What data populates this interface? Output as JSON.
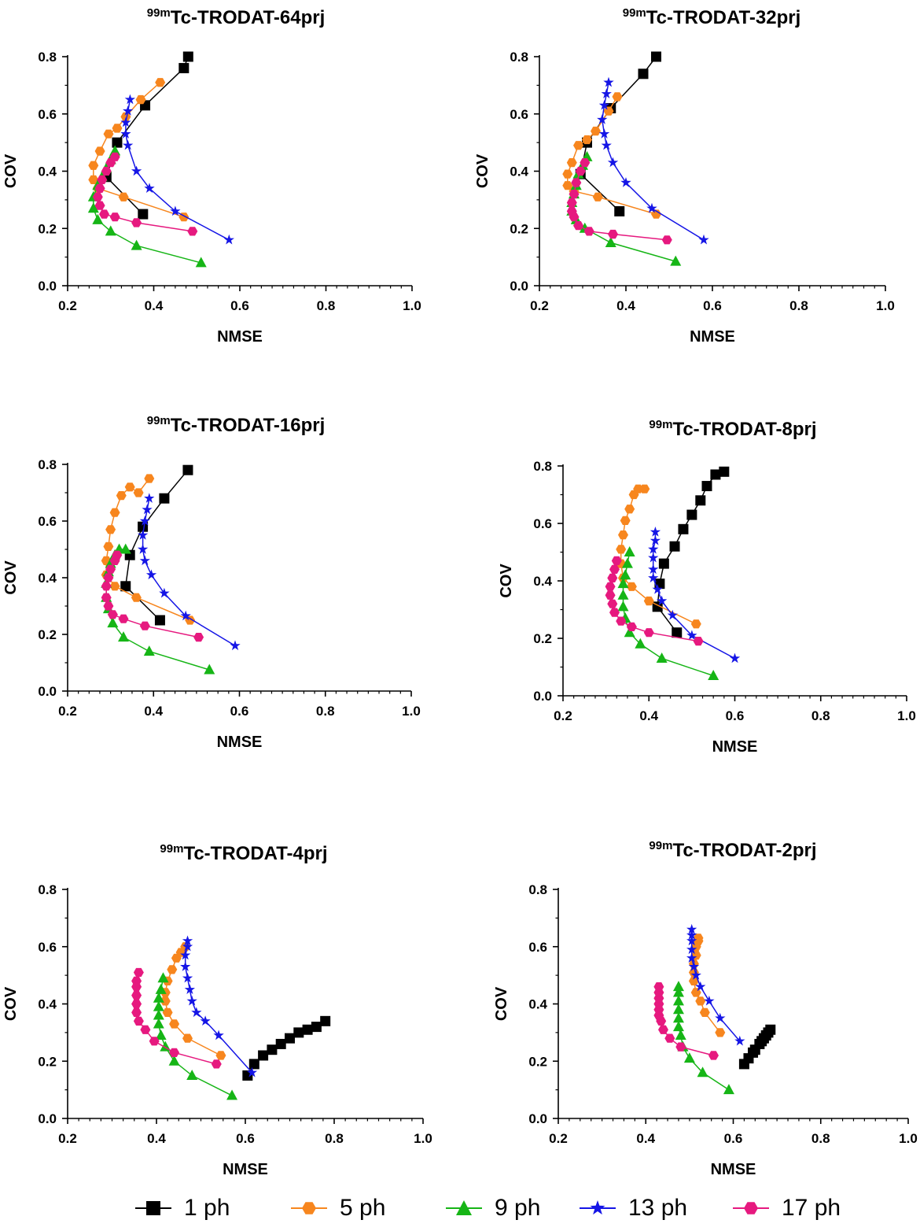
{
  "series_styles": [
    {
      "name": "1 ph",
      "color": "#000000",
      "marker": "square"
    },
    {
      "name": "5 ph",
      "color": "#F7861E",
      "marker": "hexagon"
    },
    {
      "name": "9 ph",
      "color": "#16B516",
      "marker": "triangle"
    },
    {
      "name": "13 ph",
      "color": "#1515E6",
      "marker": "star"
    },
    {
      "name": "17 ph",
      "color": "#E6197F",
      "marker": "hexagon"
    }
  ],
  "legend": {
    "items": [
      {
        "label": "1 ph"
      },
      {
        "label": "5 ph"
      },
      {
        "label": "9 ph"
      },
      {
        "label": "13 ph"
      },
      {
        "label": "17 ph"
      }
    ]
  },
  "chart_data": [
    {
      "type": "line",
      "title_sup": "99m",
      "title_main": "Tc-TRODAT-64prj",
      "xlabel": "NMSE",
      "ylabel": "COV",
      "xlim": [
        0.2,
        1.0
      ],
      "ylim": [
        0.0,
        0.8
      ],
      "xticks": [
        "0.2",
        "0.4",
        "0.6",
        "0.8",
        "1.0"
      ],
      "yticks": [
        "0.0",
        "0.2",
        "0.4",
        "0.6",
        "0.8"
      ],
      "series": [
        {
          "name": "1 ph",
          "x": [
            0.375,
            0.29,
            0.315,
            0.38,
            0.47,
            0.48
          ],
          "y": [
            0.25,
            0.38,
            0.5,
            0.63,
            0.76,
            0.8
          ]
        },
        {
          "name": "5 ph",
          "x": [
            0.47,
            0.33,
            0.27,
            0.26,
            0.26,
            0.275,
            0.295,
            0.315,
            0.335,
            0.37,
            0.415
          ],
          "y": [
            0.24,
            0.31,
            0.34,
            0.37,
            0.42,
            0.47,
            0.53,
            0.55,
            0.59,
            0.65,
            0.71
          ]
        },
        {
          "name": "9 ph",
          "x": [
            0.51,
            0.36,
            0.3,
            0.27,
            0.26,
            0.26,
            0.27,
            0.28,
            0.29,
            0.3,
            0.31
          ],
          "y": [
            0.08,
            0.14,
            0.19,
            0.23,
            0.27,
            0.31,
            0.35,
            0.38,
            0.41,
            0.44,
            0.47
          ]
        },
        {
          "name": "13 ph",
          "x": [
            0.575,
            0.45,
            0.39,
            0.36,
            0.34,
            0.335,
            0.335,
            0.34,
            0.345
          ],
          "y": [
            0.16,
            0.26,
            0.34,
            0.4,
            0.49,
            0.53,
            0.57,
            0.61,
            0.65
          ]
        },
        {
          "name": "17 ph",
          "x": [
            0.49,
            0.36,
            0.31,
            0.285,
            0.275,
            0.27,
            0.275,
            0.28,
            0.29,
            0.3,
            0.31
          ],
          "y": [
            0.19,
            0.22,
            0.24,
            0.25,
            0.28,
            0.31,
            0.34,
            0.37,
            0.4,
            0.43,
            0.45
          ]
        }
      ]
    },
    {
      "type": "line",
      "title_sup": "99m",
      "title_main": "Tc-TRODAT-32prj",
      "xlabel": "NMSE",
      "ylabel": "COV",
      "xlim": [
        0.2,
        1.0
      ],
      "ylim": [
        0.0,
        0.8
      ],
      "xticks": [
        "0.2",
        "0.4",
        "0.6",
        "0.8",
        "1.0"
      ],
      "yticks": [
        "0.0",
        "0.2",
        "0.4",
        "0.6",
        "0.8"
      ],
      "series": [
        {
          "name": "1 ph",
          "x": [
            0.385,
            0.295,
            0.31,
            0.365,
            0.44,
            0.47
          ],
          "y": [
            0.26,
            0.39,
            0.5,
            0.62,
            0.74,
            0.8
          ]
        },
        {
          "name": "5 ph",
          "x": [
            0.47,
            0.335,
            0.28,
            0.265,
            0.265,
            0.275,
            0.29,
            0.31,
            0.33,
            0.36,
            0.38
          ],
          "y": [
            0.25,
            0.31,
            0.33,
            0.35,
            0.39,
            0.43,
            0.49,
            0.51,
            0.54,
            0.61,
            0.66
          ]
        },
        {
          "name": "9 ph",
          "x": [
            0.515,
            0.365,
            0.305,
            0.285,
            0.275,
            0.275,
            0.28,
            0.285,
            0.29,
            0.3,
            0.31
          ],
          "y": [
            0.085,
            0.15,
            0.2,
            0.23,
            0.26,
            0.29,
            0.32,
            0.35,
            0.39,
            0.42,
            0.45
          ]
        },
        {
          "name": "13 ph",
          "x": [
            0.58,
            0.46,
            0.4,
            0.37,
            0.355,
            0.35,
            0.345,
            0.35,
            0.355,
            0.36
          ],
          "y": [
            0.16,
            0.27,
            0.36,
            0.43,
            0.49,
            0.53,
            0.58,
            0.63,
            0.67,
            0.71
          ]
        },
        {
          "name": "17 ph",
          "x": [
            0.495,
            0.37,
            0.315,
            0.29,
            0.28,
            0.275,
            0.275,
            0.28,
            0.285,
            0.295,
            0.305
          ],
          "y": [
            0.16,
            0.18,
            0.19,
            0.21,
            0.24,
            0.26,
            0.29,
            0.32,
            0.36,
            0.4,
            0.43
          ]
        }
      ]
    },
    {
      "type": "line",
      "title_sup": "99m",
      "title_main": "Tc-TRODAT-16prj",
      "xlabel": "NMSE",
      "ylabel": "COV",
      "xlim": [
        0.2,
        1.0
      ],
      "ylim": [
        0.0,
        0.8
      ],
      "xticks": [
        "0.2",
        "0.4",
        "0.6",
        "0.8",
        "1.0"
      ],
      "yticks": [
        "0.0",
        "0.2",
        "0.4",
        "0.6",
        "0.8"
      ],
      "series": [
        {
          "name": "1 ph",
          "x": [
            0.415,
            0.335,
            0.345,
            0.375,
            0.425,
            0.48
          ],
          "y": [
            0.25,
            0.37,
            0.48,
            0.58,
            0.68,
            0.78
          ]
        },
        {
          "name": "5 ph",
          "x": [
            0.485,
            0.36,
            0.31,
            0.29,
            0.29,
            0.295,
            0.3,
            0.31,
            0.325,
            0.345,
            0.365,
            0.39
          ],
          "y": [
            0.25,
            0.33,
            0.37,
            0.41,
            0.46,
            0.51,
            0.57,
            0.63,
            0.69,
            0.72,
            0.7,
            0.75
          ]
        },
        {
          "name": "9 ph",
          "x": [
            0.53,
            0.39,
            0.33,
            0.305,
            0.295,
            0.29,
            0.29,
            0.295,
            0.3,
            0.31,
            0.32,
            0.335
          ],
          "y": [
            0.075,
            0.14,
            0.19,
            0.24,
            0.29,
            0.33,
            0.38,
            0.42,
            0.45,
            0.48,
            0.5,
            0.5
          ]
        },
        {
          "name": "13 ph",
          "x": [
            0.59,
            0.475,
            0.425,
            0.395,
            0.38,
            0.375,
            0.375,
            0.38,
            0.385,
            0.39
          ],
          "y": [
            0.16,
            0.265,
            0.345,
            0.41,
            0.46,
            0.5,
            0.55,
            0.6,
            0.64,
            0.68
          ]
        },
        {
          "name": "17 ph",
          "x": [
            0.505,
            0.38,
            0.33,
            0.305,
            0.295,
            0.29,
            0.29,
            0.295,
            0.3,
            0.31,
            0.315
          ],
          "y": [
            0.19,
            0.23,
            0.255,
            0.27,
            0.3,
            0.33,
            0.37,
            0.4,
            0.43,
            0.46,
            0.48
          ]
        }
      ]
    },
    {
      "type": "line",
      "title_sup": "99m",
      "title_main": "Tc-TRODAT-8prj",
      "xlabel": "NMSE",
      "ylabel": "COV",
      "xlim": [
        0.2,
        1.0
      ],
      "ylim": [
        0.0,
        0.8
      ],
      "xticks": [
        "0.2",
        "0.4",
        "0.6",
        "0.8",
        "1.0"
      ],
      "yticks": [
        "0.0",
        "0.2",
        "0.4",
        "0.6",
        "0.8"
      ],
      "series": [
        {
          "name": "1 ph",
          "x": [
            0.465,
            0.42,
            0.425,
            0.435,
            0.46,
            0.48,
            0.5,
            0.52,
            0.535,
            0.555,
            0.575
          ],
          "y": [
            0.22,
            0.31,
            0.39,
            0.46,
            0.52,
            0.58,
            0.63,
            0.68,
            0.73,
            0.77,
            0.78
          ]
        },
        {
          "name": "5 ph",
          "x": [
            0.51,
            0.4,
            0.36,
            0.34,
            0.335,
            0.335,
            0.34,
            0.345,
            0.355,
            0.365,
            0.375,
            0.39
          ],
          "y": [
            0.25,
            0.33,
            0.38,
            0.41,
            0.46,
            0.51,
            0.56,
            0.61,
            0.65,
            0.7,
            0.72,
            0.72
          ]
        },
        {
          "name": "9 ph",
          "x": [
            0.55,
            0.43,
            0.38,
            0.355,
            0.345,
            0.34,
            0.34,
            0.34,
            0.345,
            0.35,
            0.355
          ],
          "y": [
            0.07,
            0.13,
            0.18,
            0.22,
            0.27,
            0.31,
            0.35,
            0.39,
            0.42,
            0.46,
            0.5
          ]
        },
        {
          "name": "13 ph",
          "x": [
            0.6,
            0.5,
            0.455,
            0.43,
            0.42,
            0.41,
            0.41,
            0.41,
            0.41,
            0.415,
            0.415
          ],
          "y": [
            0.13,
            0.21,
            0.28,
            0.33,
            0.37,
            0.41,
            0.44,
            0.48,
            0.51,
            0.54,
            0.57
          ]
        },
        {
          "name": "17 ph",
          "x": [
            0.515,
            0.4,
            0.36,
            0.335,
            0.32,
            0.315,
            0.31,
            0.31,
            0.315,
            0.32,
            0.325
          ],
          "y": [
            0.19,
            0.22,
            0.24,
            0.26,
            0.29,
            0.32,
            0.35,
            0.38,
            0.41,
            0.44,
            0.47
          ]
        }
      ]
    },
    {
      "type": "line",
      "title_sup": "99m",
      "title_main": "Tc-TRODAT-4prj",
      "xlabel": "NMSE",
      "ylabel": "COV",
      "xlim": [
        0.2,
        1.0
      ],
      "ylim": [
        0.0,
        0.8
      ],
      "xticks": [
        "0.2",
        "0.4",
        "0.6",
        "0.8",
        "1.0"
      ],
      "yticks": [
        "0.0",
        "0.2",
        "0.4",
        "0.6",
        "0.8"
      ],
      "series": [
        {
          "name": "1 ph",
          "x": [
            0.605,
            0.62,
            0.64,
            0.66,
            0.68,
            0.7,
            0.72,
            0.74,
            0.76,
            0.78
          ],
          "y": [
            0.15,
            0.19,
            0.22,
            0.24,
            0.26,
            0.28,
            0.3,
            0.31,
            0.32,
            0.34
          ]
        },
        {
          "name": "5 ph",
          "x": [
            0.545,
            0.47,
            0.44,
            0.425,
            0.42,
            0.42,
            0.425,
            0.435,
            0.445,
            0.455,
            0.465
          ],
          "y": [
            0.22,
            0.28,
            0.33,
            0.37,
            0.41,
            0.44,
            0.48,
            0.52,
            0.56,
            0.58,
            0.6
          ]
        },
        {
          "name": "9 ph",
          "x": [
            0.57,
            0.48,
            0.44,
            0.42,
            0.41,
            0.405,
            0.405,
            0.405,
            0.405,
            0.41,
            0.415
          ],
          "y": [
            0.08,
            0.15,
            0.2,
            0.25,
            0.29,
            0.33,
            0.36,
            0.39,
            0.42,
            0.45,
            0.49
          ]
        },
        {
          "name": "13 ph",
          "x": [
            0.615,
            0.54,
            0.51,
            0.49,
            0.48,
            0.475,
            0.47,
            0.465,
            0.465,
            0.47,
            0.47
          ],
          "y": [
            0.16,
            0.29,
            0.34,
            0.37,
            0.41,
            0.45,
            0.49,
            0.53,
            0.57,
            0.6,
            0.62
          ]
        },
        {
          "name": "17 ph",
          "x": [
            0.535,
            0.44,
            0.395,
            0.375,
            0.36,
            0.355,
            0.355,
            0.355,
            0.355,
            0.355,
            0.36
          ],
          "y": [
            0.19,
            0.23,
            0.27,
            0.31,
            0.34,
            0.37,
            0.4,
            0.43,
            0.46,
            0.48,
            0.51
          ]
        }
      ]
    },
    {
      "type": "line",
      "title_sup": "99m",
      "title_main": "Tc-TRODAT-2prj",
      "xlabel": "NMSE",
      "ylabel": "COV",
      "xlim": [
        0.2,
        1.0
      ],
      "ylim": [
        0.0,
        0.8
      ],
      "xticks": [
        "0.2",
        "0.4",
        "0.6",
        "0.8",
        "1.0"
      ],
      "yticks": [
        "0.0",
        "0.2",
        "0.4",
        "0.6",
        "0.8"
      ],
      "series": [
        {
          "name": "1 ph",
          "x": [
            0.625,
            0.635,
            0.645,
            0.65,
            0.66,
            0.665,
            0.67,
            0.675,
            0.68,
            0.685
          ],
          "y": [
            0.19,
            0.21,
            0.23,
            0.24,
            0.26,
            0.27,
            0.28,
            0.29,
            0.3,
            0.31
          ]
        },
        {
          "name": "5 ph",
          "x": [
            0.57,
            0.535,
            0.525,
            0.515,
            0.51,
            0.51,
            0.51,
            0.515,
            0.515,
            0.52,
            0.52
          ],
          "y": [
            0.3,
            0.37,
            0.41,
            0.44,
            0.48,
            0.51,
            0.54,
            0.57,
            0.6,
            0.62,
            0.63
          ]
        },
        {
          "name": "9 ph",
          "x": [
            0.59,
            0.53,
            0.5,
            0.485,
            0.48,
            0.475,
            0.475,
            0.475,
            0.475,
            0.475,
            0.475
          ],
          "y": [
            0.1,
            0.16,
            0.21,
            0.25,
            0.29,
            0.32,
            0.35,
            0.38,
            0.41,
            0.44,
            0.46
          ]
        },
        {
          "name": "13 ph",
          "x": [
            0.615,
            0.57,
            0.545,
            0.525,
            0.515,
            0.51,
            0.505,
            0.505,
            0.505,
            0.505,
            0.505
          ],
          "y": [
            0.27,
            0.35,
            0.41,
            0.46,
            0.5,
            0.53,
            0.56,
            0.59,
            0.62,
            0.64,
            0.66
          ]
        },
        {
          "name": "17 ph",
          "x": [
            0.555,
            0.48,
            0.455,
            0.44,
            0.435,
            0.43,
            0.43,
            0.43,
            0.43,
            0.43,
            0.43
          ],
          "y": [
            0.22,
            0.25,
            0.28,
            0.31,
            0.34,
            0.36,
            0.38,
            0.4,
            0.42,
            0.44,
            0.46
          ]
        }
      ]
    }
  ]
}
